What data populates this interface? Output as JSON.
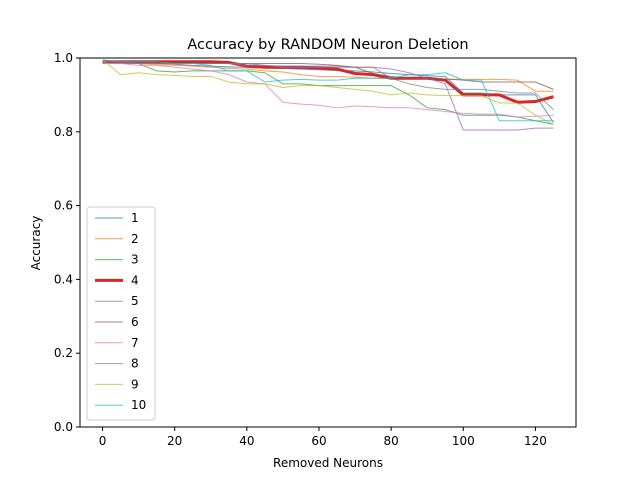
{
  "chart_data": {
    "type": "line",
    "title": "Accuracy by RANDOM Neuron Deletion",
    "xlabel": "Removed Neurons",
    "ylabel": "Accuracy",
    "xlim": [
      -6.25,
      131.25
    ],
    "ylim": [
      0.0,
      1.0
    ],
    "xticks": [
      0,
      20,
      40,
      60,
      80,
      100,
      120
    ],
    "yticks": [
      0.0,
      0.2,
      0.4,
      0.6,
      0.8,
      1.0
    ],
    "xtick_labels": [
      "0",
      "20",
      "40",
      "60",
      "80",
      "100",
      "120"
    ],
    "ytick_labels": [
      "0.0",
      "0.2",
      "0.4",
      "0.6",
      "0.8",
      "1.0"
    ],
    "grid": false,
    "legend_position": "center-left",
    "x": [
      0,
      5,
      10,
      15,
      20,
      25,
      30,
      35,
      40,
      45,
      50,
      55,
      60,
      65,
      70,
      75,
      80,
      85,
      90,
      95,
      100,
      105,
      110,
      115,
      120,
      125
    ],
    "series": [
      {
        "name": "1",
        "color": "#1f77b4",
        "width": 1,
        "values": [
          0.99,
          0.99,
          0.988,
          0.985,
          0.983,
          0.98,
          0.978,
          0.976,
          0.975,
          0.973,
          0.972,
          0.97,
          0.968,
          0.966,
          0.965,
          0.962,
          0.958,
          0.955,
          0.952,
          0.95,
          0.905,
          0.905,
          0.9,
          0.9,
          0.9,
          0.825
        ]
      },
      {
        "name": "2",
        "color": "#ff7f0e",
        "width": 1,
        "values": [
          0.99,
          0.988,
          0.985,
          0.982,
          0.98,
          0.978,
          0.975,
          0.972,
          0.97,
          0.965,
          0.962,
          0.955,
          0.95,
          0.95,
          0.948,
          0.945,
          0.945,
          0.945,
          0.944,
          0.943,
          0.942,
          0.942,
          0.942,
          0.94,
          0.91,
          0.91
        ]
      },
      {
        "name": "3",
        "color": "#2ca02c",
        "width": 1,
        "values": [
          0.99,
          0.985,
          0.985,
          0.965,
          0.962,
          0.965,
          0.965,
          0.965,
          0.965,
          0.96,
          0.93,
          0.93,
          0.925,
          0.925,
          0.925,
          0.925,
          0.925,
          0.9,
          0.865,
          0.86,
          0.845,
          0.845,
          0.845,
          0.84,
          0.83,
          0.82
        ]
      },
      {
        "name": "4",
        "color": "#d62728",
        "width": 3,
        "values": [
          0.99,
          0.99,
          0.99,
          0.99,
          0.99,
          0.99,
          0.99,
          0.988,
          0.978,
          0.975,
          0.975,
          0.975,
          0.973,
          0.97,
          0.958,
          0.955,
          0.945,
          0.945,
          0.945,
          0.94,
          0.9,
          0.9,
          0.9,
          0.88,
          0.882,
          0.895
        ]
      },
      {
        "name": "5",
        "color": "#9467bd",
        "width": 1,
        "values": [
          0.985,
          0.985,
          0.985,
          0.985,
          0.985,
          0.985,
          0.985,
          0.985,
          0.98,
          0.98,
          0.978,
          0.978,
          0.978,
          0.978,
          0.975,
          0.975,
          0.97,
          0.96,
          0.945,
          0.93,
          0.805,
          0.805,
          0.805,
          0.805,
          0.81,
          0.81
        ]
      },
      {
        "name": "6",
        "color": "#8c564b",
        "width": 1,
        "values": [
          0.99,
          0.99,
          0.99,
          0.985,
          0.985,
          0.985,
          0.985,
          0.985,
          0.985,
          0.985,
          0.985,
          0.985,
          0.983,
          0.98,
          0.975,
          0.958,
          0.95,
          0.945,
          0.943,
          0.943,
          0.94,
          0.935,
          0.935,
          0.935,
          0.935,
          0.915
        ]
      },
      {
        "name": "7",
        "color": "#e377c2",
        "width": 1,
        "values": [
          0.985,
          0.985,
          0.98,
          0.98,
          0.975,
          0.97,
          0.965,
          0.955,
          0.935,
          0.93,
          0.88,
          0.875,
          0.872,
          0.865,
          0.87,
          0.868,
          0.865,
          0.865,
          0.86,
          0.855,
          0.85,
          0.848,
          0.848,
          0.84,
          0.842,
          0.845
        ]
      },
      {
        "name": "8",
        "color": "#7f7f7f",
        "width": 1,
        "values": [
          0.99,
          0.99,
          0.985,
          0.985,
          0.985,
          0.985,
          0.985,
          0.985,
          0.985,
          0.98,
          0.975,
          0.975,
          0.975,
          0.975,
          0.975,
          0.975,
          0.945,
          0.93,
          0.92,
          0.915,
          0.915,
          0.915,
          0.91,
          0.905,
          0.905,
          0.86
        ]
      },
      {
        "name": "9",
        "color": "#bcbd22",
        "width": 1,
        "values": [
          0.995,
          0.955,
          0.96,
          0.955,
          0.953,
          0.95,
          0.95,
          0.935,
          0.93,
          0.93,
          0.92,
          0.925,
          0.925,
          0.92,
          0.915,
          0.91,
          0.9,
          0.905,
          0.9,
          0.898,
          0.898,
          0.898,
          0.878,
          0.878,
          0.845,
          0.82
        ]
      },
      {
        "name": "10",
        "color": "#17becf",
        "width": 1,
        "values": [
          0.995,
          0.99,
          0.99,
          0.99,
          0.985,
          0.985,
          0.98,
          0.965,
          0.965,
          0.935,
          0.94,
          0.942,
          0.94,
          0.94,
          0.945,
          0.945,
          0.945,
          0.955,
          0.955,
          0.96,
          0.94,
          0.94,
          0.83,
          0.83,
          0.83,
          0.83
        ]
      }
    ]
  }
}
